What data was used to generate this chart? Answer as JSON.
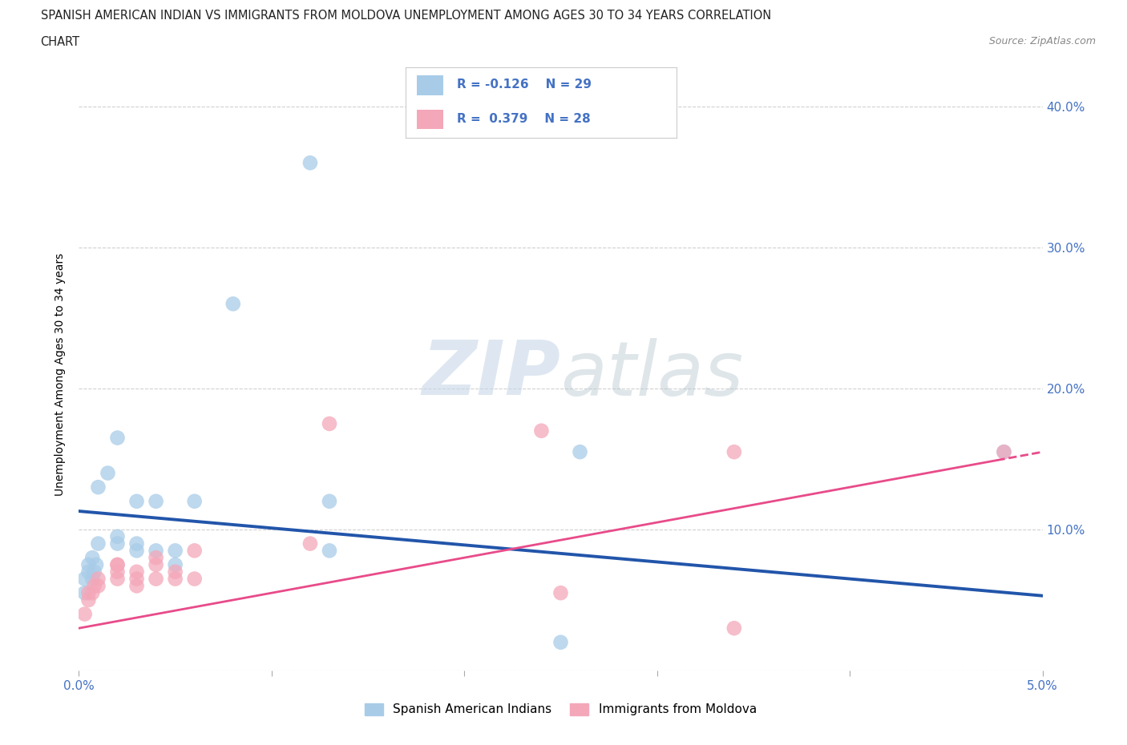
{
  "title_line1": "SPANISH AMERICAN INDIAN VS IMMIGRANTS FROM MOLDOVA UNEMPLOYMENT AMONG AGES 30 TO 34 YEARS CORRELATION",
  "title_line2": "CHART",
  "source": "Source: ZipAtlas.com",
  "ylabel": "Unemployment Among Ages 30 to 34 years",
  "xlim": [
    0.0,
    0.05
  ],
  "ylim": [
    0.0,
    0.42
  ],
  "xticks": [
    0.0,
    0.01,
    0.02,
    0.03,
    0.04,
    0.05
  ],
  "xticklabels": [
    "0.0%",
    "",
    "",
    "",
    "",
    "5.0%"
  ],
  "ytick_values": [
    0.0,
    0.1,
    0.2,
    0.3,
    0.4
  ],
  "ytick_labels": [
    "",
    "10.0%",
    "20.0%",
    "30.0%",
    "40.0%"
  ],
  "legend_label1": "Spanish American Indians",
  "legend_label2": "Immigrants from Moldova",
  "legend_color1": "#a8cce8",
  "legend_color2": "#f4a7b9",
  "R1": -0.126,
  "N1": 29,
  "R2": 0.379,
  "N2": 28,
  "blue_scatter_x": [
    0.0003,
    0.0003,
    0.0005,
    0.0005,
    0.0007,
    0.0007,
    0.0008,
    0.0009,
    0.001,
    0.001,
    0.0015,
    0.002,
    0.002,
    0.002,
    0.003,
    0.003,
    0.003,
    0.004,
    0.004,
    0.005,
    0.005,
    0.006,
    0.008,
    0.012,
    0.013,
    0.013,
    0.025,
    0.026,
    0.048
  ],
  "blue_scatter_y": [
    0.055,
    0.065,
    0.07,
    0.075,
    0.065,
    0.08,
    0.07,
    0.075,
    0.09,
    0.13,
    0.14,
    0.095,
    0.09,
    0.165,
    0.09,
    0.085,
    0.12,
    0.085,
    0.12,
    0.085,
    0.075,
    0.12,
    0.26,
    0.36,
    0.085,
    0.12,
    0.02,
    0.155,
    0.155
  ],
  "pink_scatter_x": [
    0.0003,
    0.0005,
    0.0005,
    0.0007,
    0.0008,
    0.001,
    0.001,
    0.002,
    0.002,
    0.002,
    0.002,
    0.003,
    0.003,
    0.003,
    0.004,
    0.004,
    0.004,
    0.005,
    0.005,
    0.006,
    0.006,
    0.012,
    0.013,
    0.024,
    0.025,
    0.034,
    0.034,
    0.048
  ],
  "pink_scatter_y": [
    0.04,
    0.05,
    0.055,
    0.055,
    0.06,
    0.065,
    0.06,
    0.065,
    0.07,
    0.075,
    0.075,
    0.065,
    0.07,
    0.06,
    0.065,
    0.075,
    0.08,
    0.07,
    0.065,
    0.065,
    0.085,
    0.09,
    0.175,
    0.17,
    0.055,
    0.155,
    0.03,
    0.155
  ],
  "blue_line_color": "#2255aa",
  "pink_line_color": "#e84b8a",
  "blue_line_intercept": 0.113,
  "blue_line_slope": -1.2,
  "pink_line_intercept": 0.03,
  "pink_line_slope": 2.5,
  "watermark_zip": "ZIP",
  "watermark_atlas": "atlas",
  "background_color": "#ffffff",
  "grid_color": "#d0d0d0"
}
